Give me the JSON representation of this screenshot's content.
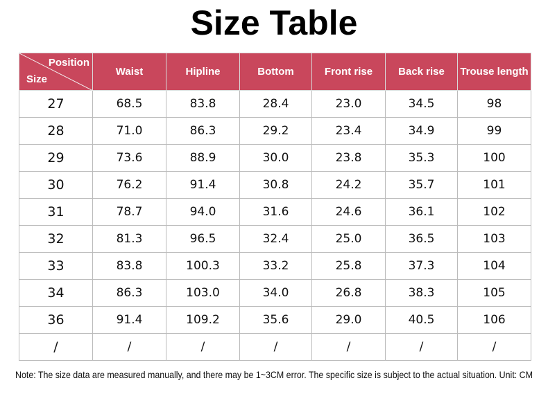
{
  "header": {
    "title": "Size Table"
  },
  "table": {
    "corner": {
      "top": "Position",
      "bottom": "Size"
    },
    "columns": [
      "Waist",
      "Hipline",
      "Bottom",
      "Front rise",
      "Back rise",
      "Trouse length"
    ],
    "rows": [
      [
        "27",
        "68.5",
        "83.8",
        "28.4",
        "23.0",
        "34.5",
        "98"
      ],
      [
        "28",
        "71.0",
        "86.3",
        "29.2",
        "23.4",
        "34.9",
        "99"
      ],
      [
        "29",
        "73.6",
        "88.9",
        "30.0",
        "23.8",
        "35.3",
        "100"
      ],
      [
        "30",
        "76.2",
        "91.4",
        "30.8",
        "24.2",
        "35.7",
        "101"
      ],
      [
        "31",
        "78.7",
        "94.0",
        "31.6",
        "24.6",
        "36.1",
        "102"
      ],
      [
        "32",
        "81.3",
        "96.5",
        "32.4",
        "25.0",
        "36.5",
        "103"
      ],
      [
        "33",
        "83.8",
        "100.3",
        "33.2",
        "25.8",
        "37.3",
        "104"
      ],
      [
        "34",
        "86.3",
        "103.0",
        "34.0",
        "26.8",
        "38.3",
        "105"
      ],
      [
        "36",
        "91.4",
        "109.2",
        "35.6",
        "29.0",
        "40.5",
        "106"
      ],
      [
        "/",
        "/",
        "/",
        "/",
        "/",
        "/",
        "/"
      ]
    ]
  },
  "note": "Note: The size data are measured manually, and there may be 1~3CM error. The specific size is subject to the actual situation. Unit: CM"
}
